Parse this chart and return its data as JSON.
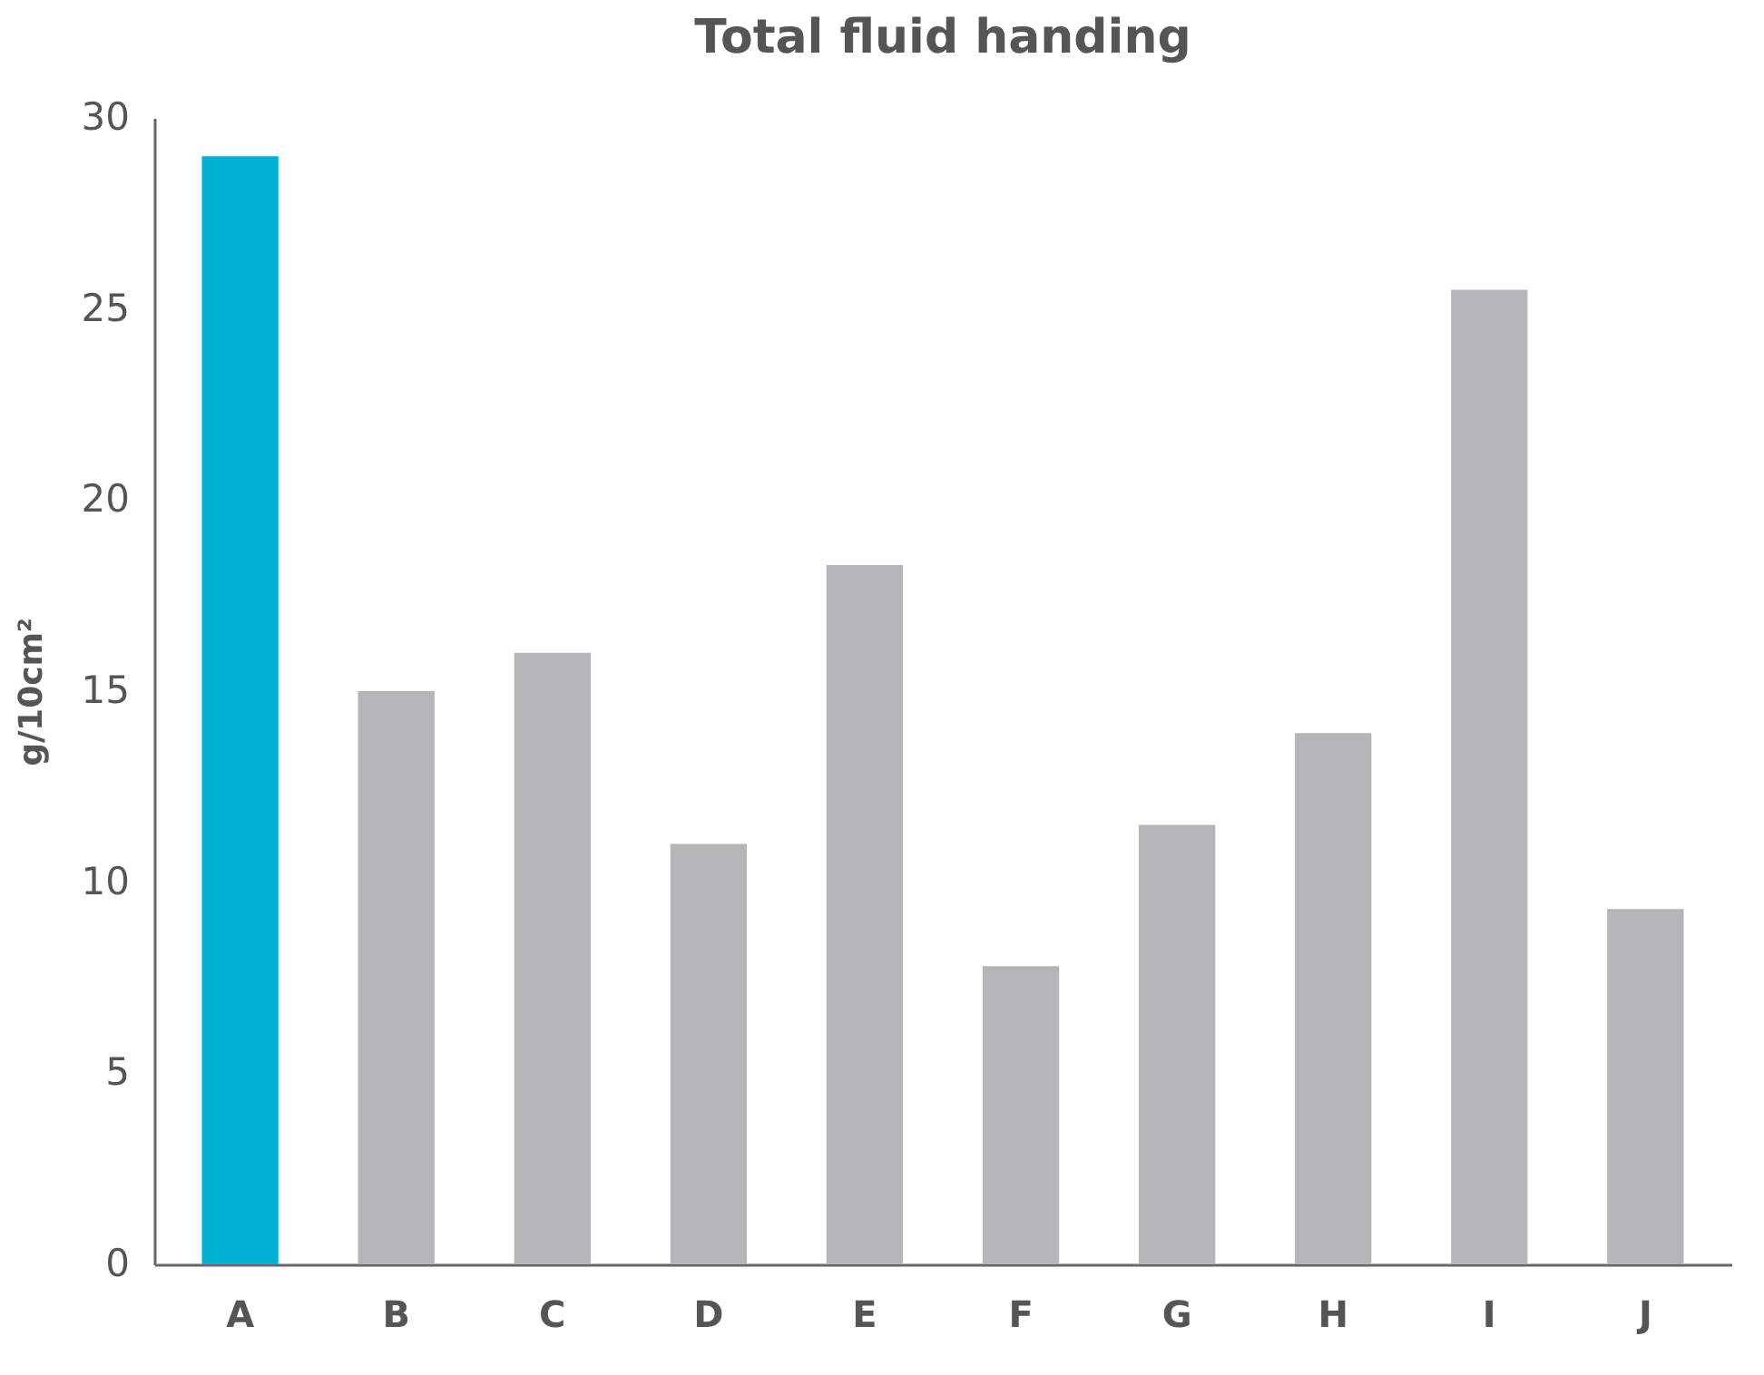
{
  "chart_data": {
    "type": "bar",
    "title": "Total fluid handing",
    "ylabel": "g/10cm²",
    "categories": [
      "A",
      "B",
      "C",
      "D",
      "E",
      "F",
      "G",
      "H",
      "I",
      "J"
    ],
    "values": [
      29.0,
      15.0,
      16.0,
      11.0,
      18.3,
      7.8,
      11.5,
      13.9,
      25.5,
      9.3
    ],
    "colors": [
      "#00b2d3",
      "#b5b5b8",
      "#b5b5b8",
      "#b5b5b8",
      "#b5b5b8",
      "#b5b5b8",
      "#b5b5b8",
      "#b5b5b8",
      "#b5b5b8",
      "#b5b5b8"
    ],
    "ylim": [
      0,
      30
    ],
    "yticks": [
      0,
      5,
      10,
      15,
      20,
      25,
      30
    ],
    "grid": false
  }
}
